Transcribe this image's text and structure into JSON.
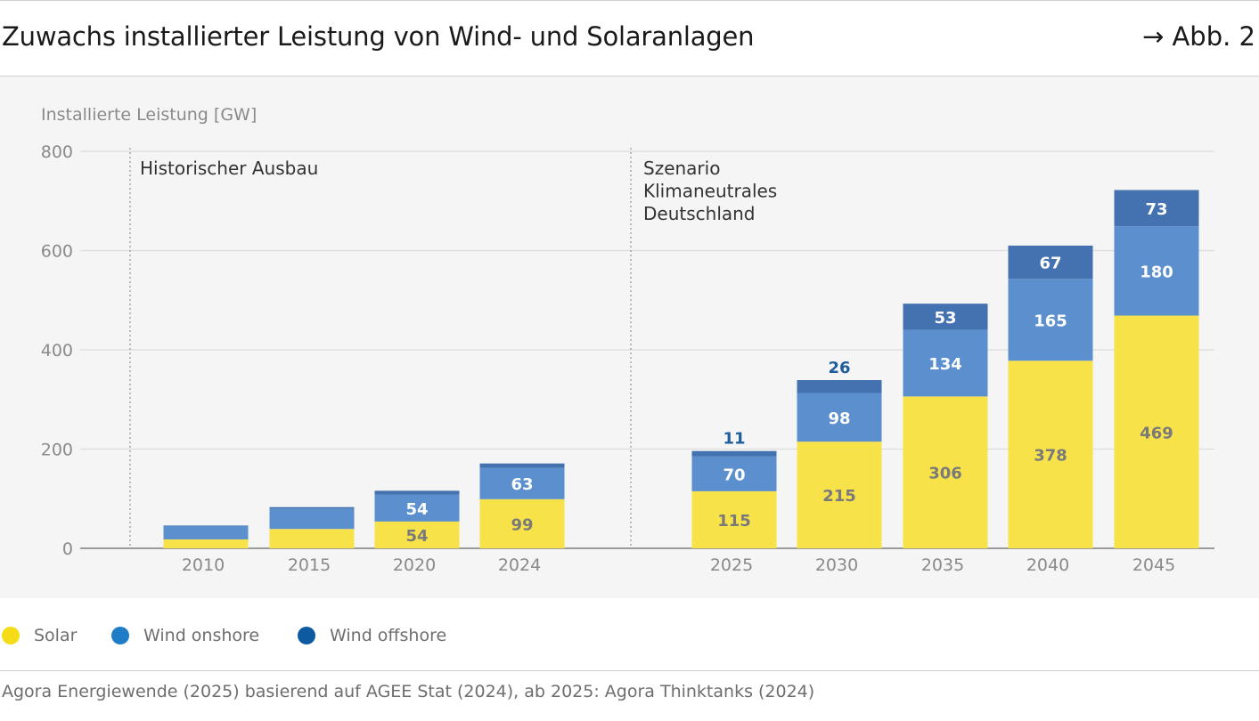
{
  "header": {
    "title": "Zuwachs installierter Leistung von Wind- und Solaranlagen",
    "figure_ref": "→ Abb. 2"
  },
  "source": "Agora Energiewende (2025) basierend auf AGEE Stat (2024), ab 2025: Agora Thinktanks (2024)",
  "colors": {
    "solar": "#f8e24a",
    "wind_onshore": "#5b8fce",
    "wind_offshore": "#4471b0",
    "legend_solar": "#f5dc16",
    "legend_onshore": "#1e7dc6",
    "legend_offshore": "#0e5aa0",
    "outside_label": "#1f5e9c",
    "solar_label": "#7a7a7a"
  },
  "chart_data": {
    "type": "bar",
    "stacked": true,
    "ylabel": "Installierte Leistung [GW]",
    "ylim": [
      0,
      800
    ],
    "yticks": [
      0,
      200,
      400,
      600,
      800
    ],
    "grid": true,
    "legend_position": "bottom-left",
    "categories": [
      "2010",
      "2015",
      "2020",
      "2024",
      "2025",
      "2030",
      "2035",
      "2040",
      "2045"
    ],
    "series": [
      {
        "name": "Solar",
        "values": [
          18,
          39,
          54,
          99,
          115,
          215,
          306,
          378,
          469
        ]
      },
      {
        "name": "Wind onshore",
        "values": [
          27,
          41,
          54,
          63,
          70,
          98,
          134,
          165,
          180
        ]
      },
      {
        "name": "Wind offshore",
        "values": [
          1,
          3,
          8,
          9,
          11,
          26,
          53,
          67,
          73
        ]
      }
    ],
    "data_labels": [
      [
        "",
        "",
        "54",
        "99",
        "115",
        "215",
        "306",
        "378",
        "469"
      ],
      [
        "",
        "",
        "54",
        "63",
        "70",
        "98",
        "134",
        "165",
        "180"
      ],
      [
        "",
        "",
        "",
        "",
        "11",
        "26",
        "53",
        "67",
        "73"
      ]
    ],
    "annotations": [
      {
        "lines": [
          "Historischer Ausbau"
        ]
      },
      {
        "lines": [
          "Szenario",
          "Klimaneutrales",
          "Deutschland"
        ]
      }
    ]
  }
}
